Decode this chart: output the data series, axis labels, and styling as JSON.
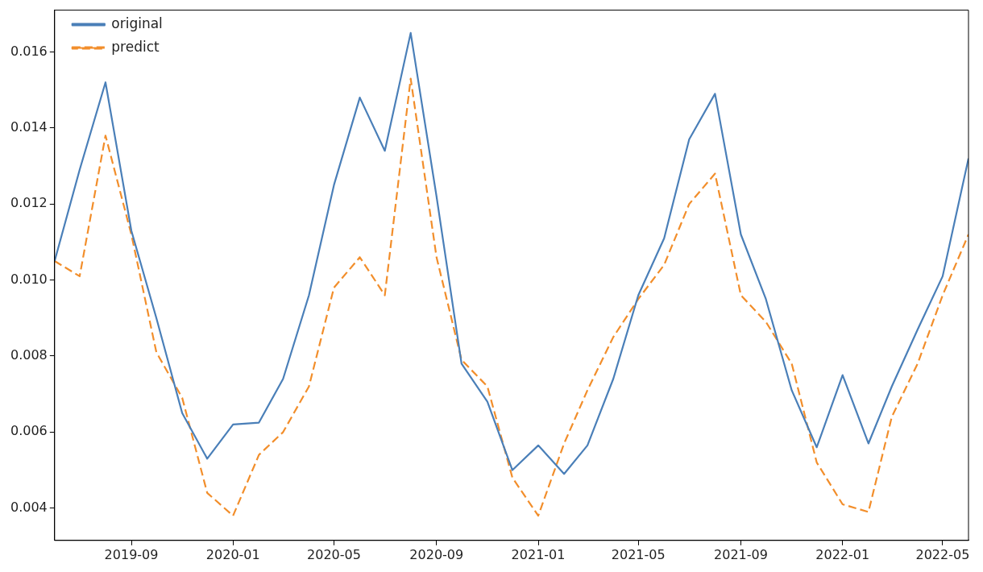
{
  "chart_data": {
    "type": "line",
    "x": [
      "2019-06",
      "2019-07",
      "2019-08",
      "2019-09",
      "2019-10",
      "2019-11",
      "2019-12",
      "2020-01",
      "2020-02",
      "2020-03",
      "2020-04",
      "2020-05",
      "2020-06",
      "2020-07",
      "2020-08",
      "2020-09",
      "2020-10",
      "2020-11",
      "2020-12",
      "2021-01",
      "2021-02",
      "2021-03",
      "2021-04",
      "2021-05",
      "2021-06",
      "2021-07",
      "2021-08",
      "2021-09",
      "2021-10",
      "2021-11",
      "2021-12",
      "2022-01",
      "2022-02",
      "2022-03",
      "2022-04",
      "2022-05",
      "2022-06"
    ],
    "series": [
      {
        "name": "original",
        "color": "#4a7fb8",
        "line_style": "solid",
        "values": [
          0.0105,
          0.0129,
          0.0152,
          0.0113,
          0.009,
          0.0065,
          0.0053,
          0.0062,
          0.00625,
          0.0074,
          0.0096,
          0.0125,
          0.0148,
          0.0134,
          0.0165,
          0.0122,
          0.0078,
          0.0068,
          0.005,
          0.00565,
          0.0049,
          0.00565,
          0.0074,
          0.0096,
          0.0111,
          0.0137,
          0.0149,
          0.0112,
          0.0095,
          0.0071,
          0.0056,
          0.0075,
          0.0057,
          0.0072,
          0.0087,
          0.0101,
          0.0132
        ]
      },
      {
        "name": "predict",
        "color": "#f28e2b",
        "line_style": "dashed",
        "values": [
          0.0105,
          0.0101,
          0.0138,
          0.0112,
          0.0081,
          0.0069,
          0.0044,
          0.0038,
          0.0054,
          0.006,
          0.0072,
          0.0098,
          0.0106,
          0.0096,
          0.0153,
          0.0106,
          0.0079,
          0.0072,
          0.0048,
          0.0038,
          0.0057,
          0.0071,
          0.0085,
          0.0095,
          0.0104,
          0.012,
          0.0128,
          0.0096,
          0.0089,
          0.0078,
          0.0052,
          0.0041,
          0.0039,
          0.0064,
          0.0078,
          0.0096,
          0.0112
        ]
      }
    ],
    "xlim": [
      "2019-06",
      "2022-06"
    ],
    "xticks": [
      "2019-09",
      "2020-01",
      "2020-05",
      "2020-09",
      "2021-01",
      "2021-05",
      "2021-09",
      "2022-01",
      "2022-05"
    ],
    "ylim": [
      0.00315,
      0.0171
    ],
    "yticks": [
      {
        "value": 0.004,
        "label": "0.004"
      },
      {
        "value": 0.006,
        "label": "0.006"
      },
      {
        "value": 0.008,
        "label": "0.008"
      },
      {
        "value": 0.01,
        "label": "0.010"
      },
      {
        "value": 0.012,
        "label": "0.012"
      },
      {
        "value": 0.014,
        "label": "0.014"
      },
      {
        "value": 0.016,
        "label": "0.016"
      }
    ],
    "legend": "top left",
    "grid": false,
    "marker": "none"
  }
}
